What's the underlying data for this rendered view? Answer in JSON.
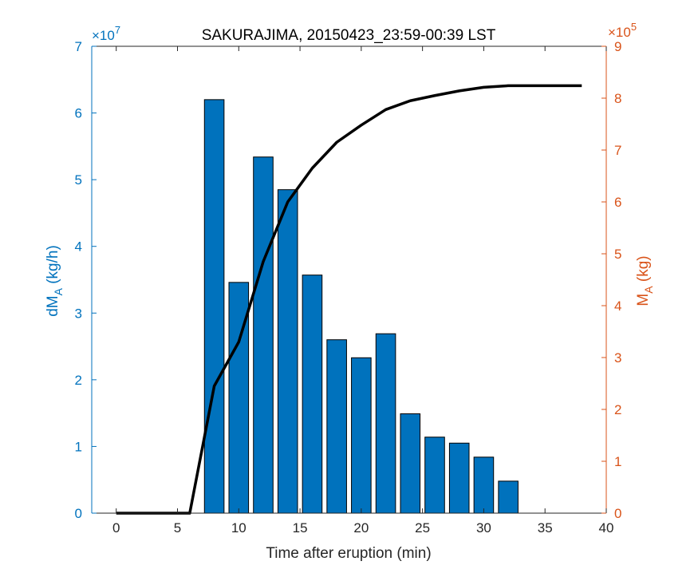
{
  "chart_data": {
    "type": "bar",
    "title": "SAKURAJIMA, 20150423_23:59-00:39 LST",
    "xlabel": "Time after eruption (min)",
    "ylabel_left": {
      "main": "dM",
      "sub": "A",
      "unit": " (kg/h)"
    },
    "ylabel_right": {
      "main": "M",
      "sub": "A",
      "unit": " (kg)"
    },
    "xlim": [
      -2,
      40
    ],
    "ylim_left": [
      0,
      70000000
    ],
    "ylim_right": [
      0,
      900000
    ],
    "left_exponent": {
      "base": "×10",
      "power": "7"
    },
    "right_exponent": {
      "base": "×10",
      "power": "5"
    },
    "x_ticks": [
      "0",
      "5",
      "10",
      "15",
      "20",
      "25",
      "30",
      "35",
      "40"
    ],
    "y_left_ticks": [
      "0",
      "1",
      "2",
      "3",
      "4",
      "5",
      "6",
      "7"
    ],
    "y_right_ticks": [
      "0",
      "1",
      "2",
      "3",
      "4",
      "5",
      "6",
      "7",
      "8",
      "9"
    ],
    "bars": {
      "name": "dM_A",
      "color": "#0072BD",
      "x": [
        8,
        10,
        12,
        14,
        16,
        18,
        20,
        22,
        24,
        26,
        28,
        30,
        32
      ],
      "values": [
        62000000,
        34600000,
        53400000,
        48500000,
        35700000,
        26000000,
        23300000,
        26900000,
        14900000,
        11400000,
        10500000,
        8400000,
        4800000
      ]
    },
    "line": {
      "name": "M_A",
      "color": "#000000",
      "x": [
        0,
        6,
        8,
        10,
        12,
        14,
        16,
        18,
        20,
        22,
        24,
        26,
        28,
        30,
        32,
        34,
        36,
        38
      ],
      "values": [
        0,
        0,
        245000,
        330000,
        485000,
        600000,
        665000,
        715000,
        748000,
        778000,
        795000,
        805000,
        814000,
        821000,
        824000,
        824000,
        824000,
        824000
      ]
    },
    "left_axis_color": "#0072BD",
    "right_axis_color": "#D95319",
    "grid": false
  }
}
